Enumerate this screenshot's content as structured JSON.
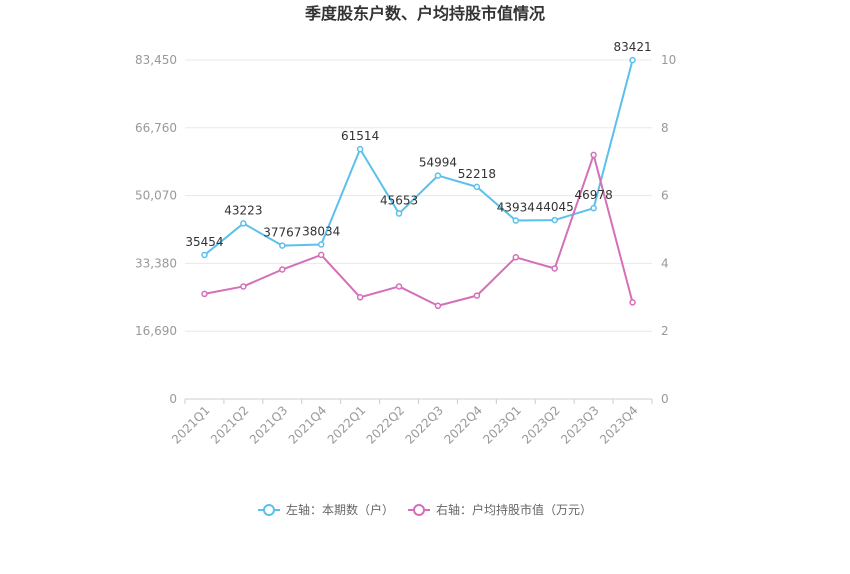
{
  "chart_data": {
    "type": "line",
    "title": "季度股东户数、户均持股市值情况",
    "categories": [
      "2021Q1",
      "2021Q2",
      "2021Q3",
      "2021Q4",
      "2022Q1",
      "2022Q2",
      "2022Q3",
      "2022Q4",
      "2023Q1",
      "2023Q2",
      "2023Q3",
      "2023Q4"
    ],
    "y_left": {
      "ticks": [
        "0",
        "16,690",
        "33,380",
        "50,070",
        "66,760",
        "83,450"
      ],
      "range": [
        0,
        83450
      ]
    },
    "y_right": {
      "ticks": [
        "0",
        "2",
        "4",
        "6",
        "8",
        "10"
      ],
      "range": [
        0,
        10
      ]
    },
    "series": [
      {
        "name": "左轴：本期数（户）",
        "axis": "left",
        "color": "#5bc0eb",
        "values": [
          35454,
          43223,
          37767,
          38034,
          61514,
          45653,
          54994,
          52218,
          43934,
          44045,
          46978,
          83421
        ],
        "labels": [
          "35454",
          "43223",
          "37767",
          "38034",
          "61514",
          "45653",
          "54994",
          "52218",
          "43934",
          "44045",
          "46978",
          "83421"
        ]
      },
      {
        "name": "右轴：户均持股市值（万元）",
        "axis": "right",
        "color": "#d46fb8",
        "values": [
          3.1,
          3.32,
          3.82,
          4.25,
          3.0,
          3.32,
          2.75,
          3.05,
          4.18,
          3.85,
          7.2,
          2.85
        ]
      }
    ],
    "grid": true,
    "legend_position": "bottom"
  }
}
